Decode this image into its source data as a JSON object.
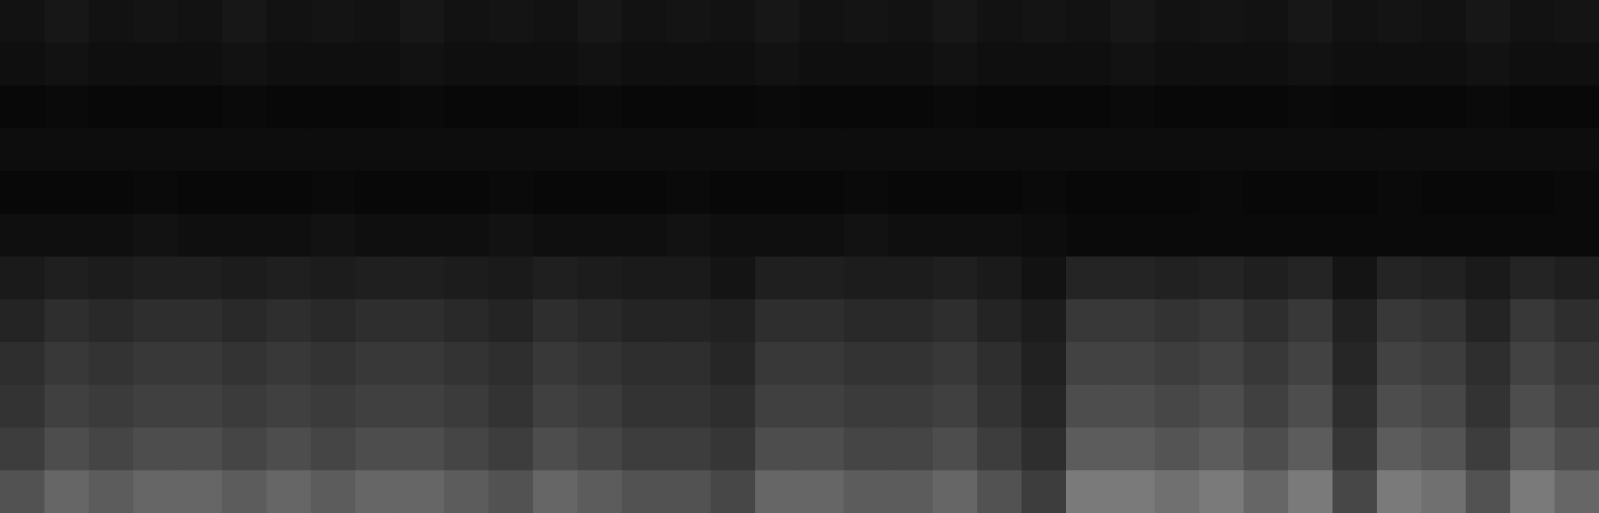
{
  "chart_data": {
    "type": "heatmap",
    "tick_labels": false,
    "color": "#ffffff",
    "zlim": [
      0,
      100
    ],
    "cells": [
      [
        7,
        9,
        7,
        8,
        7,
        9,
        7,
        8,
        7,
        9,
        7,
        8,
        7,
        9,
        7,
        8,
        7,
        9,
        7,
        8,
        7,
        9,
        7,
        8,
        7,
        9,
        7,
        8,
        7,
        9,
        7,
        8,
        7,
        9,
        7,
        8
      ],
      [
        6,
        7,
        6,
        6,
        6,
        7,
        6,
        6,
        6,
        7,
        6,
        6,
        6,
        7,
        6,
        6,
        6,
        7,
        6,
        6,
        6,
        7,
        6,
        6,
        6,
        7,
        6,
        6,
        6,
        7,
        6,
        6,
        6,
        7,
        6,
        6
      ],
      [
        3,
        4,
        3,
        3,
        3,
        4,
        3,
        3,
        3,
        4,
        3,
        3,
        3,
        4,
        3,
        3,
        3,
        4,
        3,
        3,
        3,
        4,
        3,
        3,
        3,
        4,
        3,
        3,
        3,
        4,
        3,
        3,
        3,
        4,
        3,
        3
      ],
      [
        5,
        5,
        5,
        5,
        5,
        5,
        5,
        5,
        5,
        5,
        5,
        5,
        5,
        5,
        5,
        5,
        5,
        5,
        5,
        5,
        5,
        5,
        5,
        5,
        5,
        5,
        5,
        5,
        5,
        5,
        5,
        5,
        5,
        5,
        5,
        5
      ],
      [
        3,
        3,
        3,
        4,
        3,
        3,
        3,
        4,
        3,
        3,
        3,
        4,
        3,
        3,
        3,
        4,
        3,
        3,
        3,
        4,
        3,
        3,
        3,
        4,
        3,
        3,
        3,
        4,
        3,
        3,
        3,
        4,
        3,
        3,
        3,
        4
      ],
      [
        6,
        6,
        6,
        7,
        6,
        6,
        6,
        7,
        6,
        6,
        6,
        7,
        6,
        6,
        6,
        7,
        6,
        6,
        6,
        7,
        6,
        6,
        6,
        5,
        4,
        4,
        4,
        4,
        4,
        4,
        4,
        4,
        4,
        4,
        4,
        4
      ],
      [
        10,
        12,
        11,
        12,
        12,
        11,
        12,
        11,
        12,
        12,
        11,
        10,
        12,
        11,
        10,
        10,
        8,
        12,
        12,
        11,
        11,
        12,
        10,
        7,
        14,
        14,
        13,
        14,
        12,
        14,
        8,
        14,
        13,
        10,
        14,
        12
      ],
      [
        14,
        18,
        16,
        18,
        18,
        16,
        18,
        16,
        18,
        18,
        16,
        14,
        18,
        16,
        14,
        14,
        13,
        18,
        18,
        16,
        16,
        18,
        14,
        11,
        22,
        22,
        20,
        22,
        18,
        22,
        13,
        22,
        20,
        14,
        22,
        18
      ],
      [
        18,
        22,
        20,
        22,
        22,
        20,
        22,
        20,
        22,
        22,
        20,
        18,
        22,
        20,
        18,
        18,
        15,
        22,
        22,
        20,
        20,
        22,
        18,
        13,
        26,
        26,
        24,
        26,
        22,
        26,
        15,
        26,
        24,
        18,
        26,
        22
      ],
      [
        20,
        25,
        23,
        25,
        25,
        23,
        25,
        23,
        25,
        25,
        23,
        20,
        25,
        23,
        20,
        20,
        18,
        25,
        25,
        23,
        23,
        25,
        20,
        15,
        30,
        30,
        28,
        30,
        25,
        30,
        18,
        30,
        28,
        20,
        30,
        25
      ],
      [
        24,
        30,
        27,
        30,
        30,
        27,
        30,
        27,
        30,
        30,
        27,
        24,
        30,
        27,
        24,
        24,
        21,
        30,
        30,
        27,
        27,
        30,
        24,
        18,
        36,
        36,
        33,
        36,
        30,
        36,
        21,
        36,
        33,
        24,
        36,
        30
      ],
      [
        32,
        40,
        36,
        40,
        40,
        36,
        40,
        36,
        40,
        40,
        36,
        32,
        40,
        36,
        32,
        32,
        28,
        40,
        40,
        36,
        36,
        40,
        32,
        24,
        48,
        48,
        44,
        48,
        40,
        48,
        28,
        48,
        44,
        32,
        48,
        40
      ]
    ]
  }
}
